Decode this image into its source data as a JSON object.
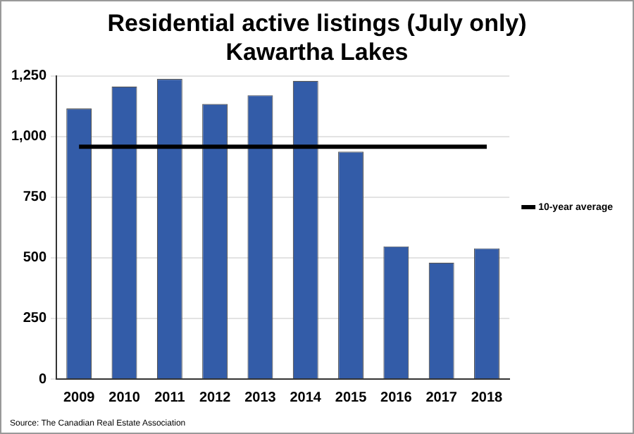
{
  "chart_data": {
    "type": "bar",
    "title": "Residential active listings (July only)\nKawartha Lakes",
    "categories": [
      "2009",
      "2010",
      "2011",
      "2012",
      "2013",
      "2014",
      "2015",
      "2016",
      "2017",
      "2018"
    ],
    "series": [
      {
        "color": "#335ca8",
        "values": [
          1115,
          1206,
          1237,
          1134,
          1170,
          1229,
          937,
          547,
          480,
          539
        ]
      },
      {
        "type": "line",
        "name": "10-year average",
        "color": "#000000",
        "marker": "none",
        "values": [
          958,
          958,
          958,
          958,
          958,
          958,
          958,
          958,
          958,
          958
        ]
      }
    ],
    "ylim": [
      0,
      1250
    ],
    "yticks": [
      0,
      250,
      500,
      750,
      {
        "value": 1000,
        "label": "1,000"
      },
      {
        "value": 1250,
        "label": "1,250"
      }
    ],
    "grid": "y",
    "legend": "right",
    "annotations": [
      "Source: The Canadian Real Estate Association"
    ]
  }
}
